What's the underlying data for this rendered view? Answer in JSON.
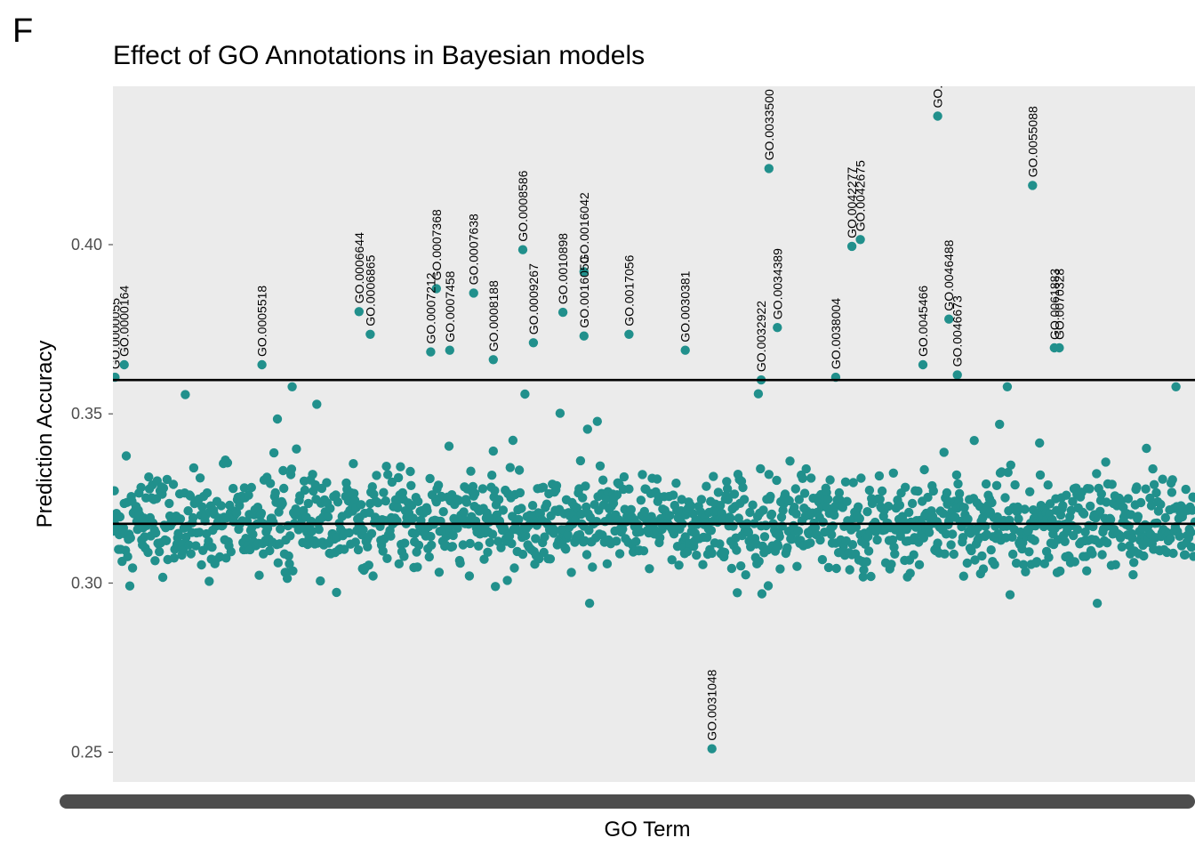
{
  "panel_letter": "F",
  "chart_data": {
    "type": "scatter",
    "title": "Effect of GO Annotations in Bayesian models",
    "xlabel": "GO Term",
    "ylabel": "Prediction Accuracy",
    "ylim": [
      0.2412,
      0.4468
    ],
    "yticks": [
      0.25,
      0.3,
      0.35,
      0.4
    ],
    "ytick_labels": [
      "0.25",
      "0.30",
      "0.35",
      "0.40"
    ],
    "n_terms": 1540,
    "reference_lines": [
      {
        "name": "mean",
        "y": 0.3175
      },
      {
        "name": "threshold",
        "y": 0.36
      }
    ],
    "point_color": "#21908C",
    "panel_background": "#EBEBEB",
    "grid": false,
    "background_points": {
      "description": "dense cloud of ~1540 GO terms centered on the mean",
      "mean": 0.3175,
      "spread": 0.007,
      "min": 0.294,
      "max": 0.358
    },
    "labeled_points": [
      {
        "label": "GO.0000055",
        "index": 3,
        "y": 0.3608
      },
      {
        "label": "GO.0000164",
        "index": 16,
        "y": 0.3645
      },
      {
        "label": "GO.0005518",
        "index": 212,
        "y": 0.3645
      },
      {
        "label": "GO.0006644",
        "index": 350,
        "y": 0.3802
      },
      {
        "label": "GO.0006865",
        "index": 366,
        "y": 0.3735
      },
      {
        "label": "GO.0007212",
        "index": 452,
        "y": 0.3683
      },
      {
        "label": "GO.0007368",
        "index": 460,
        "y": 0.387
      },
      {
        "label": "GO.0007458",
        "index": 479,
        "y": 0.3688
      },
      {
        "label": "GO.0007638",
        "index": 513,
        "y": 0.3857
      },
      {
        "label": "GO.0008188",
        "index": 541,
        "y": 0.366
      },
      {
        "label": "GO.0008586",
        "index": 583,
        "y": 0.3985
      },
      {
        "label": "GO.0009267",
        "index": 598,
        "y": 0.371
      },
      {
        "label": "GO.0010898",
        "index": 640,
        "y": 0.38
      },
      {
        "label": "GO.0016050",
        "index": 670,
        "y": 0.373
      },
      {
        "label": "GO.0016042",
        "index": 670,
        "y": 0.392
      },
      {
        "label": "GO.0017056",
        "index": 734,
        "y": 0.3735
      },
      {
        "label": "GO.0030381",
        "index": 814,
        "y": 0.3688
      },
      {
        "label": "GO.0031048",
        "index": 852,
        "y": 0.251
      },
      {
        "label": "GO.0032922",
        "index": 922,
        "y": 0.36
      },
      {
        "label": "GO.0033500",
        "index": 933,
        "y": 0.4225
      },
      {
        "label": "GO.0034389",
        "index": 945,
        "y": 0.3755
      },
      {
        "label": "GO.0038004",
        "index": 1028,
        "y": 0.3608
      },
      {
        "label": "GO.0042277",
        "index": 1051,
        "y": 0.3995
      },
      {
        "label": "GO.0042675",
        "index": 1063,
        "y": 0.4015
      },
      {
        "label": "GO.0045466",
        "index": 1152,
        "y": 0.3645
      },
      {
        "label": "GO.",
        "index": 1173,
        "y": 0.438
      },
      {
        "label": "GO.0046488",
        "index": 1189,
        "y": 0.378
      },
      {
        "label": "GO.0046673",
        "index": 1201,
        "y": 0.3615
      },
      {
        "label": "GO.0055088",
        "index": 1308,
        "y": 0.4175
      },
      {
        "label": "GO.0061883",
        "index": 1339,
        "y": 0.3695
      },
      {
        "label": "GO.0070328",
        "index": 1346,
        "y": 0.3695
      }
    ]
  }
}
